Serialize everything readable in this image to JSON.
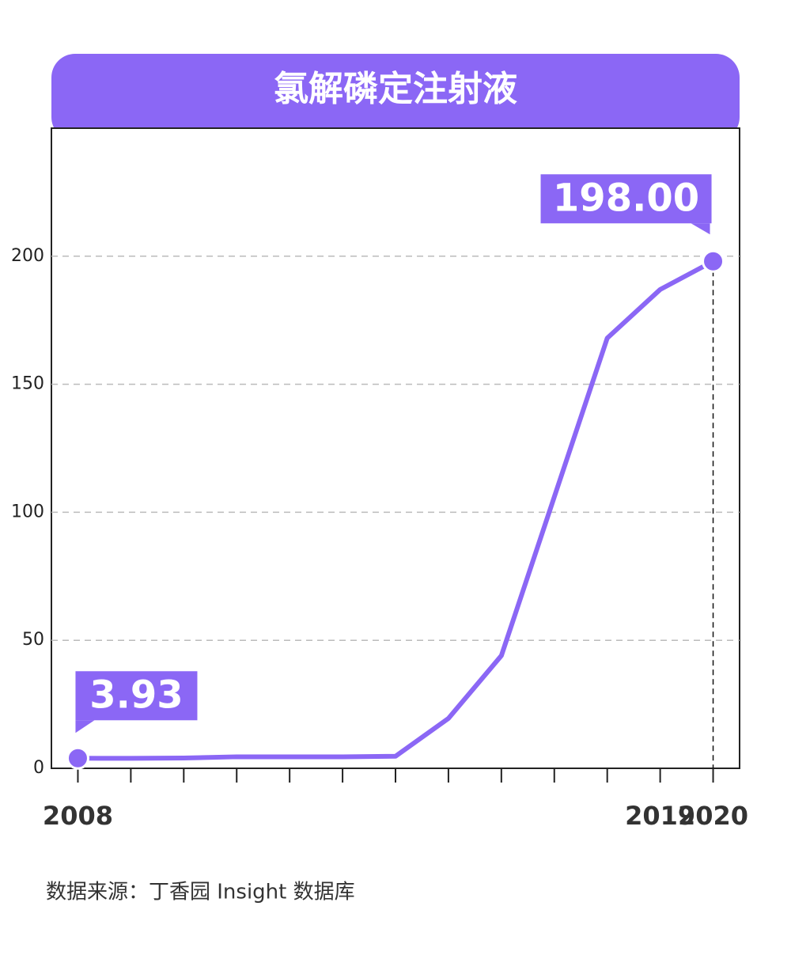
{
  "chart_data": {
    "type": "line",
    "title": "氯解磷定注射液",
    "categories": [
      "2008",
      null,
      null,
      null,
      null,
      null,
      null,
      null,
      null,
      null,
      null,
      "2019",
      "2020"
    ],
    "series": [
      {
        "name": "氯解磷定注射液",
        "color": "#8b67f5",
        "values": [
          3.93,
          3.9,
          4.0,
          4.5,
          4.5,
          4.5,
          4.7,
          19.5,
          44,
          106,
          168,
          187,
          198
        ],
        "value_labels": [
          "3.93",
          null,
          null,
          null,
          null,
          null,
          null,
          null,
          null,
          null,
          null,
          null,
          "198.00"
        ]
      }
    ],
    "ylim": [
      0,
      250
    ],
    "yticks": [
      0,
      50,
      100,
      150,
      200
    ],
    "grid": true,
    "source": "数据来源：丁香园 Insight 数据库"
  }
}
